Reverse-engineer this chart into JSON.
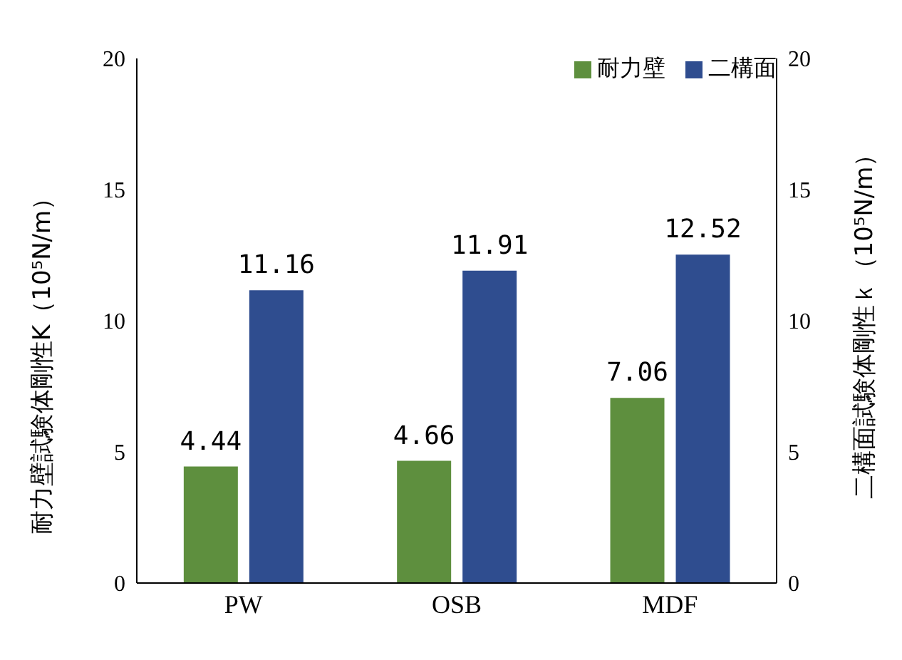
{
  "chart_data": {
    "type": "bar",
    "categories": [
      "PW",
      "OSB",
      "MDF"
    ],
    "series": [
      {
        "name": "耐力壁",
        "color": "#5e8f3e",
        "values": [
          4.44,
          4.66,
          7.06
        ]
      },
      {
        "name": "二構面",
        "color": "#2f4d8f",
        "values": [
          11.16,
          11.91,
          12.52
        ]
      }
    ],
    "ylabel": "耐力壁試験体剛性K（10⁵N/m）",
    "y2label": "二構面試験体剛性ｋ（10⁵N/m）",
    "ylim": [
      0,
      20
    ],
    "yticks": [
      0,
      5,
      10,
      15,
      20
    ],
    "y2lim": [
      0,
      20
    ],
    "y2ticks": [
      0,
      5,
      10,
      15,
      20
    ],
    "data_labels": true,
    "legend": "top right",
    "grid": false
  }
}
